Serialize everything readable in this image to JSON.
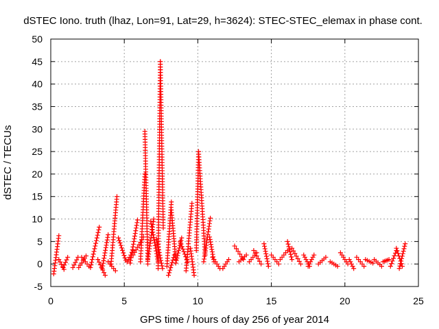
{
  "chart_data": {
    "type": "scatter",
    "title": "dSTEC Iono. truth (lhaz, Lon=91, Lat=29, h=3624): STEC-STEC_elemax in phase cont.",
    "xlabel": "GPS time / hours of day 256 of year 2014",
    "ylabel": "dSTEC  / TECUs",
    "xlim": [
      0,
      25
    ],
    "ylim": [
      -5,
      50
    ],
    "x_ticks": [
      0,
      5,
      10,
      15,
      20,
      25
    ],
    "y_ticks": [
      -5,
      0,
      5,
      10,
      15,
      20,
      25,
      30,
      35,
      40,
      45,
      50
    ],
    "grid": true,
    "marker": "+",
    "color": "#ff0000",
    "arcs": [
      {
        "x": [
          0.2,
          0.55
        ],
        "y": [
          -2.2,
          6.3
        ]
      },
      {
        "x": [
          0.55,
          0.9
        ],
        "y": [
          1.0,
          -1.2
        ]
      },
      {
        "x": [
          0.85,
          1.15
        ],
        "y": [
          -0.8,
          1.5
        ]
      },
      {
        "x": [
          1.5,
          1.85
        ],
        "y": [
          -0.8,
          1.5
        ]
      },
      {
        "x": [
          1.9,
          2.4
        ],
        "y": [
          -0.8,
          1.8
        ]
      },
      {
        "x": [
          2.1,
          2.6
        ],
        "y": [
          1.5,
          -0.5
        ]
      },
      {
        "x": [
          2.7,
          3.3
        ],
        "y": [
          -0.8,
          8.2
        ]
      },
      {
        "x": [
          3.2,
          3.7
        ],
        "y": [
          1.0,
          -2.5
        ]
      },
      {
        "x": [
          3.5,
          3.9
        ],
        "y": [
          -1.0,
          6.5
        ]
      },
      {
        "x": [
          3.9,
          4.4
        ],
        "y": [
          0.5,
          -1.5
        ]
      },
      {
        "x": [
          4.1,
          4.5
        ],
        "y": [
          0.0,
          15.0
        ]
      },
      {
        "x": [
          4.6,
          5.1
        ],
        "y": [
          5.8,
          0.8
        ]
      },
      {
        "x": [
          5.2,
          5.6
        ],
        "y": [
          0.5,
          3.0
        ]
      },
      {
        "x": [
          5.4,
          5.9
        ],
        "y": [
          0.2,
          9.8
        ]
      },
      {
        "x": [
          5.6,
          6.3
        ],
        "y": [
          2.0,
          6.0
        ]
      },
      {
        "x": [
          6.1,
          6.4
        ],
        "y": [
          0.5,
          20.0
        ]
      },
      {
        "x": [
          6.4,
          6.6
        ],
        "y": [
          29.5,
          0.0
        ]
      },
      {
        "x": [
          6.6,
          7.0
        ],
        "y": [
          1.0,
          10.0
        ]
      },
      {
        "x": [
          6.8,
          7.3
        ],
        "y": [
          9.5,
          0.5
        ]
      },
      {
        "x": [
          7.3,
          7.45
        ],
        "y": [
          -1.0,
          45.0
        ]
      },
      {
        "x": [
          7.45,
          7.65
        ],
        "y": [
          45.0,
          8.0
        ]
      },
      {
        "x": [
          7.2,
          7.6
        ],
        "y": [
          5.5,
          -1.0
        ]
      },
      {
        "x": [
          7.9,
          8.2
        ],
        "y": [
          -0.5,
          13.8
        ]
      },
      {
        "x": [
          8.2,
          8.5
        ],
        "y": [
          12.0,
          1.0
        ]
      },
      {
        "x": [
          8.0,
          8.4
        ],
        "y": [
          -2.5,
          2.0
        ]
      },
      {
        "x": [
          8.5,
          8.9
        ],
        "y": [
          0.2,
          5.8
        ]
      },
      {
        "x": [
          8.8,
          9.3
        ],
        "y": [
          5.0,
          0.5
        ]
      },
      {
        "x": [
          9.2,
          9.6
        ],
        "y": [
          -1.5,
          13.5
        ]
      },
      {
        "x": [
          9.5,
          9.75
        ],
        "y": [
          3.5,
          -2.5
        ]
      },
      {
        "x": [
          9.9,
          10.05
        ],
        "y": [
          3.0,
          25.0
        ]
      },
      {
        "x": [
          10.05,
          10.5
        ],
        "y": [
          25.0,
          2.0
        ]
      },
      {
        "x": [
          10.4,
          10.85
        ],
        "y": [
          0.5,
          10.2
        ]
      },
      {
        "x": [
          10.8,
          11.1
        ],
        "y": [
          6.0,
          0.5
        ]
      },
      {
        "x": [
          11.0,
          11.5
        ],
        "y": [
          1.5,
          -1.0
        ]
      },
      {
        "x": [
          11.7,
          12.1
        ],
        "y": [
          -1.0,
          1.0
        ]
      },
      {
        "x": [
          12.5,
          13.1
        ],
        "y": [
          4.0,
          1.0
        ]
      },
      {
        "x": [
          12.8,
          13.3
        ],
        "y": [
          0.5,
          2.0
        ]
      },
      {
        "x": [
          13.5,
          14.0
        ],
        "y": [
          0.5,
          2.5
        ]
      },
      {
        "x": [
          13.8,
          14.3
        ],
        "y": [
          3.0,
          0.0
        ]
      },
      {
        "x": [
          14.5,
          14.8
        ],
        "y": [
          4.5,
          -0.5
        ]
      },
      {
        "x": [
          15.0,
          15.5
        ],
        "y": [
          2.0,
          0.0
        ]
      },
      {
        "x": [
          15.6,
          16.1
        ],
        "y": [
          1.0,
          3.0
        ]
      },
      {
        "x": [
          16.1,
          16.4
        ],
        "y": [
          5.0,
          1.0
        ]
      },
      {
        "x": [
          16.4,
          17.0
        ],
        "y": [
          3.5,
          0.0
        ]
      },
      {
        "x": [
          17.2,
          17.6
        ],
        "y": [
          2.0,
          -0.5
        ]
      },
      {
        "x": [
          17.5,
          17.9
        ],
        "y": [
          -0.5,
          2.0
        ]
      },
      {
        "x": [
          18.2,
          18.7
        ],
        "y": [
          0.0,
          1.5
        ]
      },
      {
        "x": [
          19.0,
          19.5
        ],
        "y": [
          0.5,
          -0.5
        ]
      },
      {
        "x": [
          19.7,
          20.2
        ],
        "y": [
          2.5,
          0.0
        ]
      },
      {
        "x": [
          20.3,
          20.6
        ],
        "y": [
          1.0,
          -1.0
        ]
      },
      {
        "x": [
          20.8,
          21.3
        ],
        "y": [
          1.5,
          -0.5
        ]
      },
      {
        "x": [
          21.4,
          21.9
        ],
        "y": [
          1.0,
          0.2
        ]
      },
      {
        "x": [
          22.0,
          22.5
        ],
        "y": [
          1.0,
          -0.5
        ]
      },
      {
        "x": [
          22.6,
          23.0
        ],
        "y": [
          0.5,
          1.0
        ]
      },
      {
        "x": [
          23.1,
          23.5
        ],
        "y": [
          -0.5,
          3.0
        ]
      },
      {
        "x": [
          23.5,
          23.9
        ],
        "y": [
          3.5,
          -0.5
        ]
      },
      {
        "x": [
          23.7,
          24.1
        ],
        "y": [
          -1.0,
          4.5
        ]
      }
    ]
  }
}
